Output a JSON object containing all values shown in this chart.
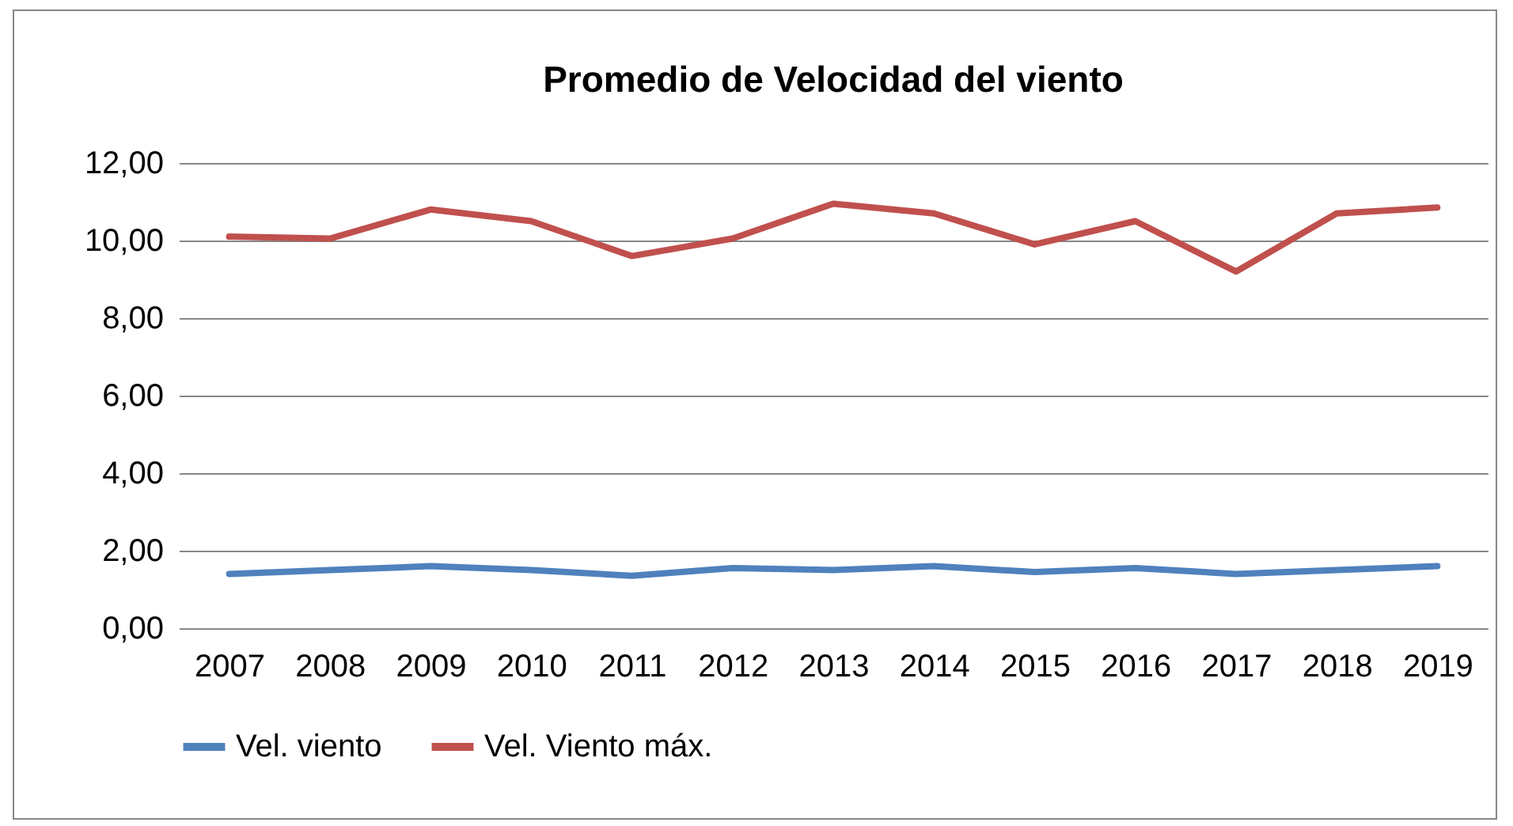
{
  "chart_data": {
    "type": "line",
    "title": "Promedio de Velocidad del viento",
    "categories": [
      "2007",
      "2008",
      "2009",
      "2010",
      "2011",
      "2012",
      "2013",
      "2014",
      "2015",
      "2016",
      "2017",
      "2018",
      "2019"
    ],
    "series": [
      {
        "name": "Vel. viento",
        "color": "#4f81bd",
        "values": [
          1.4,
          1.5,
          1.6,
          1.5,
          1.35,
          1.55,
          1.5,
          1.6,
          1.45,
          1.55,
          1.4,
          1.5,
          1.6
        ]
      },
      {
        "name": "Vel. Viento máx.",
        "color": "#c0504d",
        "values": [
          10.1,
          10.05,
          10.8,
          10.5,
          9.6,
          10.05,
          10.95,
          10.7,
          9.9,
          10.5,
          9.2,
          10.7,
          10.85
        ]
      }
    ],
    "ylim": [
      0,
      12
    ],
    "yticks": [
      {
        "value": 0,
        "label": "0,00"
      },
      {
        "value": 2,
        "label": "2,00"
      },
      {
        "value": 4,
        "label": "4,00"
      },
      {
        "value": 6,
        "label": "6,00"
      },
      {
        "value": 8,
        "label": "8,00"
      },
      {
        "value": 10,
        "label": "10,00"
      },
      {
        "value": 12,
        "label": "12,00"
      }
    ],
    "grid": "y",
    "legend": "bottom",
    "marker": "none",
    "line_style": "solid"
  }
}
